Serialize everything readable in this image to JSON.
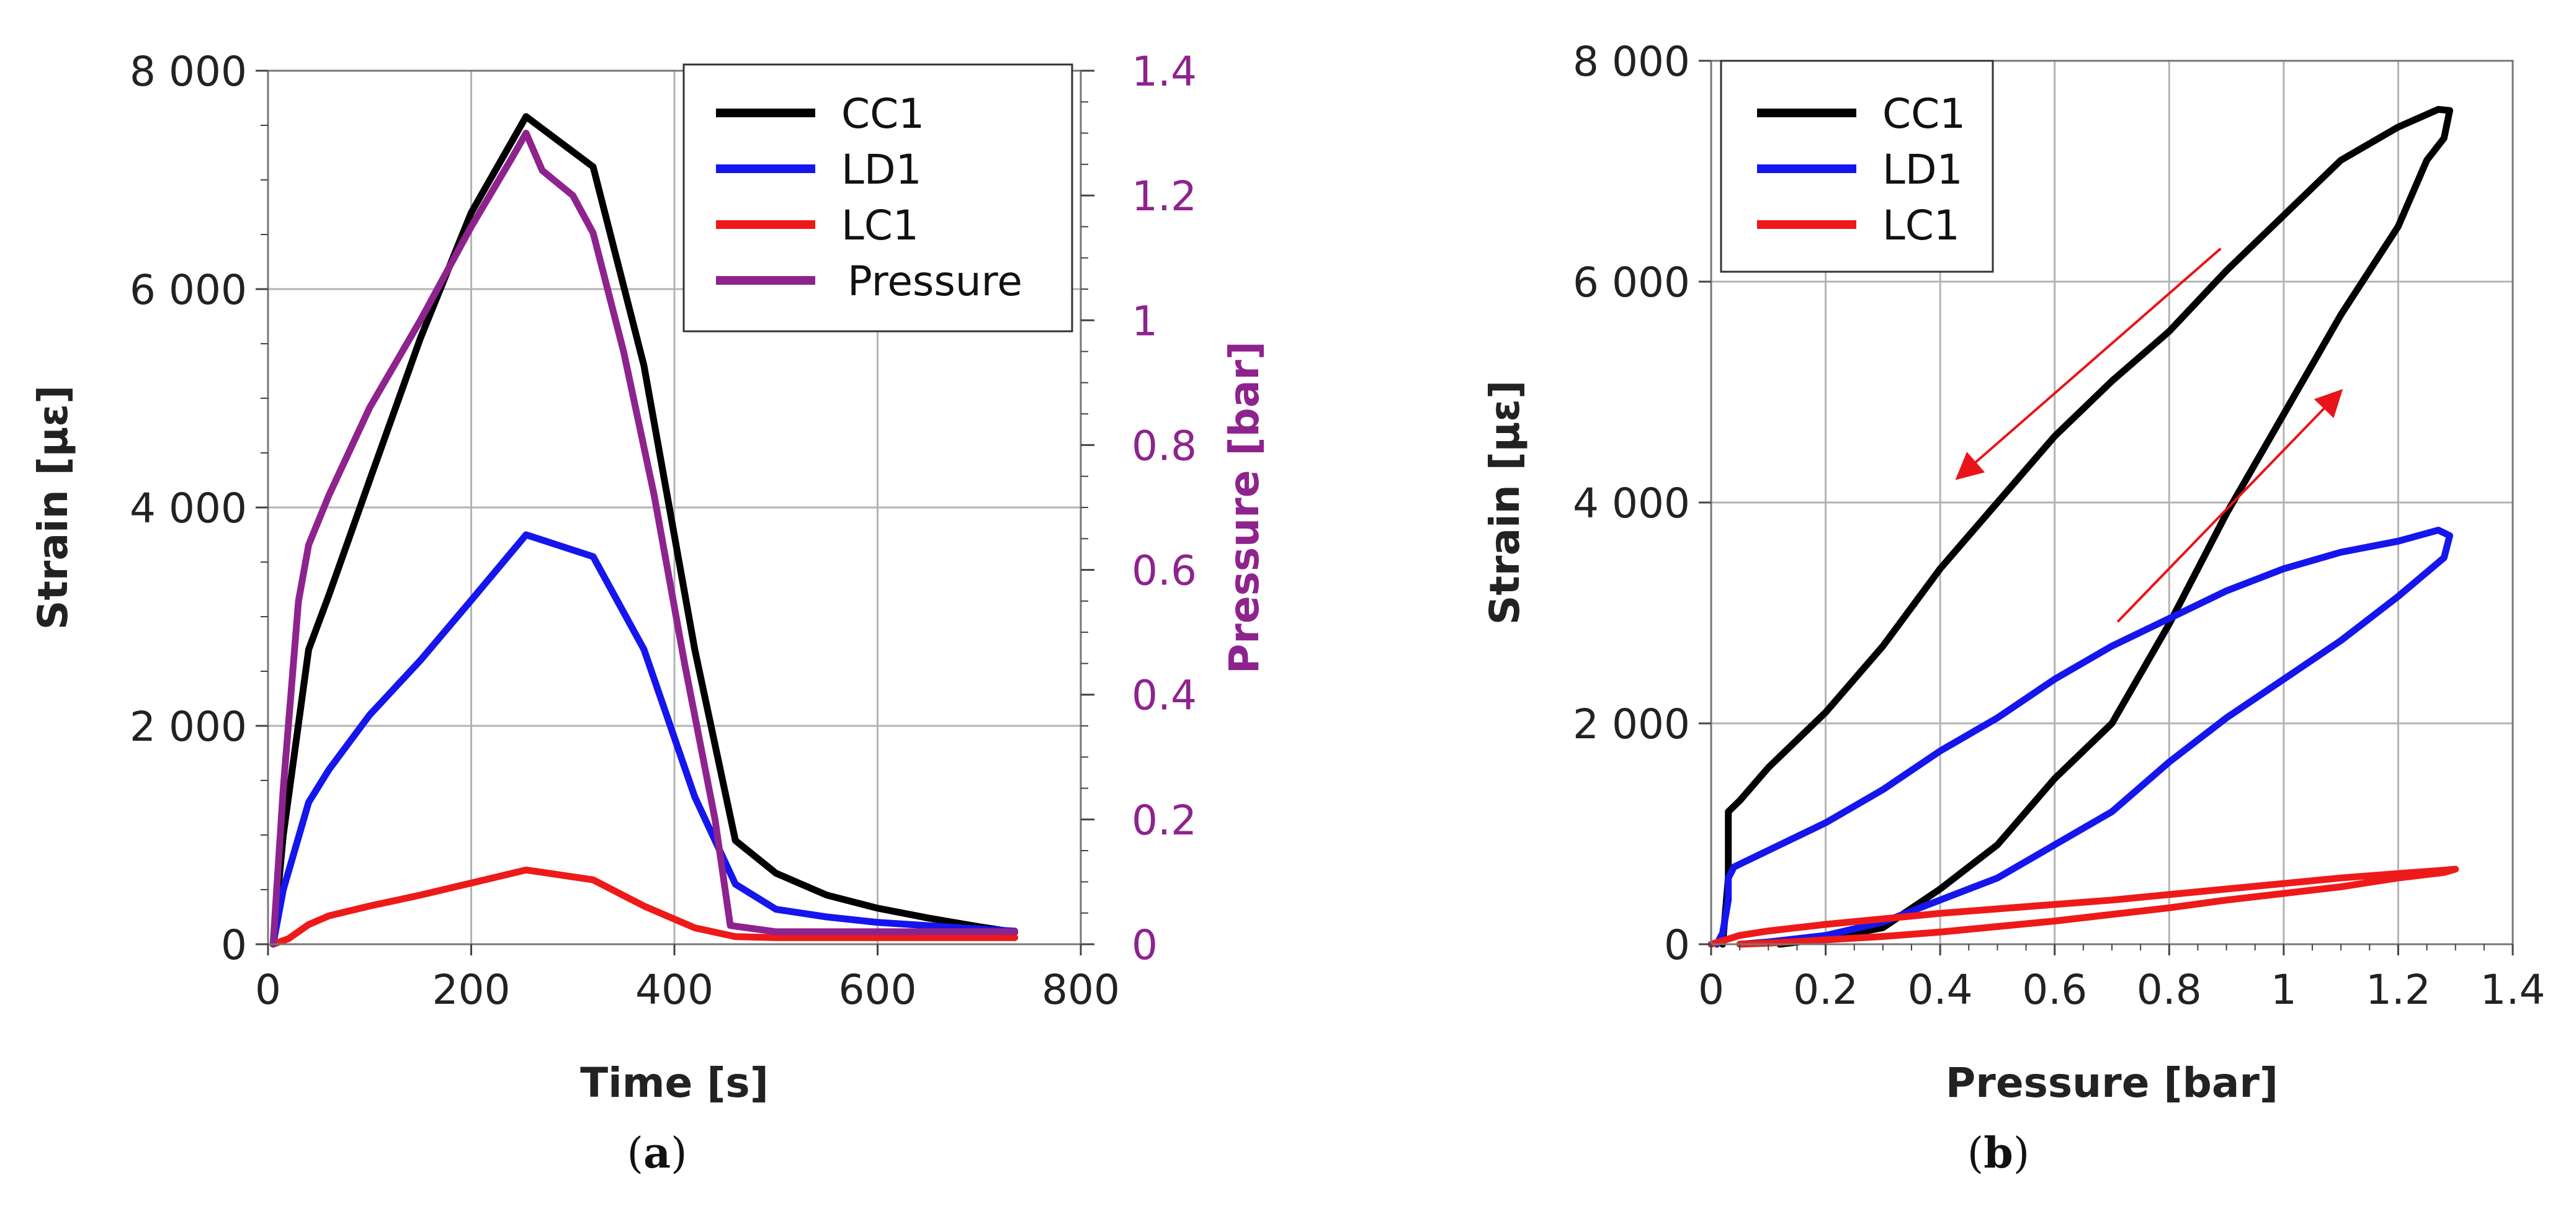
{
  "colors": {
    "CC1": "#000000",
    "LD1": "#1515ee",
    "LC1": "#ee1a1a",
    "Pressure": "#8e238e",
    "arrow": "#e8141a",
    "grid": "#b3b3b3"
  },
  "chart_data": [
    {
      "id": "a",
      "type": "line",
      "caption_letter": "a",
      "xlabel": "Time [s]",
      "ylabel": "Strain [με]",
      "y2label": "Pressure [bar]",
      "xlim": [
        0,
        800
      ],
      "ylim": [
        0,
        8000
      ],
      "y2lim": [
        0,
        1.4
      ],
      "xticks": [
        0,
        200,
        400,
        600,
        800
      ],
      "xtick_labels": [
        "0",
        "200",
        "400",
        "600",
        "800"
      ],
      "yticks": [
        0,
        2000,
        4000,
        6000,
        8000
      ],
      "ytick_labels": [
        "0",
        "2 000",
        "4 000",
        "6 000",
        "8 000"
      ],
      "y2ticks": [
        0,
        0.2,
        0.4,
        0.6,
        0.8,
        1,
        1.2,
        1.4
      ],
      "y2tick_labels": [
        "0",
        "0.2",
        "0.4",
        "0.6",
        "0.8",
        "1",
        "1.2",
        "1.4"
      ],
      "grid": true,
      "legend_position": "top-right",
      "legend": [
        "CC1",
        "LD1",
        "LC1",
        "Pressure"
      ],
      "series": [
        {
          "name": "CC1",
          "axis": "left",
          "x": [
            5,
            15,
            40,
            60,
            100,
            150,
            200,
            254,
            320,
            370,
            420,
            460,
            500,
            550,
            600,
            650,
            700,
            735
          ],
          "y": [
            0,
            1000,
            2700,
            3200,
            4250,
            5550,
            6700,
            7580,
            7120,
            5300,
            2700,
            950,
            650,
            450,
            330,
            240,
            160,
            110
          ]
        },
        {
          "name": "LD1",
          "axis": "left",
          "x": [
            5,
            15,
            40,
            60,
            100,
            150,
            200,
            254,
            320,
            370,
            420,
            460,
            500,
            550,
            600,
            650,
            700,
            735
          ],
          "y": [
            0,
            500,
            1300,
            1600,
            2100,
            2600,
            3150,
            3750,
            3550,
            2700,
            1350,
            550,
            320,
            250,
            200,
            170,
            140,
            120
          ]
        },
        {
          "name": "LC1",
          "axis": "left",
          "x": [
            5,
            20,
            40,
            60,
            100,
            150,
            200,
            254,
            320,
            370,
            420,
            460,
            500,
            600,
            700,
            735
          ],
          "y": [
            0,
            50,
            180,
            260,
            350,
            450,
            560,
            680,
            590,
            350,
            150,
            70,
            60,
            60,
            60,
            60
          ]
        },
        {
          "name": "Pressure",
          "axis": "right",
          "x": [
            5,
            15,
            30,
            40,
            60,
            100,
            150,
            200,
            240,
            254,
            270,
            300,
            320,
            350,
            380,
            410,
            440,
            455,
            500,
            600,
            700,
            735
          ],
          "y": [
            0,
            0.25,
            0.55,
            0.64,
            0.72,
            0.86,
            1.0,
            1.15,
            1.26,
            1.3,
            1.24,
            1.2,
            1.14,
            0.95,
            0.72,
            0.45,
            0.2,
            0.03,
            0.02,
            0.02,
            0.02,
            0.02
          ]
        }
      ]
    },
    {
      "id": "b",
      "type": "line",
      "caption_letter": "b",
      "xlabel": "Pressure [bar]",
      "ylabel": "Strain [με]",
      "xlim": [
        0,
        1.4
      ],
      "ylim": [
        0,
        8000
      ],
      "xticks": [
        0,
        0.2,
        0.4,
        0.6,
        0.8,
        1,
        1.2,
        1.4
      ],
      "xtick_labels": [
        "0",
        "0.2",
        "0.4",
        "0.6",
        "0.8",
        "1",
        "1.2",
        "1.4"
      ],
      "yticks": [
        0,
        2000,
        4000,
        6000,
        8000
      ],
      "ytick_labels": [
        "0",
        "2 000",
        "4 000",
        "6 000",
        "8 000"
      ],
      "grid": true,
      "legend_position": "top-left",
      "legend": [
        "CC1",
        "LD1",
        "LC1"
      ],
      "series": [
        {
          "name": "CC1",
          "x": [
            0.02,
            0.03,
            0.03,
            0.05,
            0.1,
            0.2,
            0.3,
            0.4,
            0.5,
            0.6,
            0.7,
            0.8,
            0.9,
            1.0,
            1.1,
            1.2,
            1.27,
            1.29,
            1.28,
            1.25,
            1.2,
            1.1,
            1.0,
            0.9,
            0.8,
            0.7,
            0.6,
            0.5,
            0.4,
            0.3,
            0.2,
            0.12
          ],
          "y": [
            0,
            600,
            1200,
            1300,
            1600,
            2100,
            2700,
            3400,
            4000,
            4600,
            5100,
            5550,
            6100,
            6600,
            7100,
            7400,
            7560,
            7550,
            7300,
            7100,
            6500,
            5700,
            4800,
            3900,
            2900,
            2000,
            1500,
            900,
            500,
            150,
            50,
            0
          ]
        },
        {
          "name": "LD1",
          "x": [
            0.01,
            0.02,
            0.03,
            0.03,
            0.04,
            0.1,
            0.2,
            0.3,
            0.4,
            0.5,
            0.6,
            0.7,
            0.8,
            0.9,
            1.0,
            1.1,
            1.2,
            1.27,
            1.29,
            1.28,
            1.2,
            1.1,
            1.0,
            0.9,
            0.8,
            0.7,
            0.6,
            0.5,
            0.4,
            0.3,
            0.2,
            0.1,
            0.05
          ],
          "y": [
            0,
            100,
            400,
            600,
            700,
            850,
            1100,
            1400,
            1750,
            2050,
            2400,
            2700,
            2950,
            3200,
            3400,
            3550,
            3650,
            3750,
            3700,
            3500,
            3150,
            2750,
            2400,
            2050,
            1650,
            1200,
            900,
            600,
            400,
            200,
            80,
            20,
            0
          ]
        },
        {
          "name": "LC1",
          "x": [
            0.0,
            0.05,
            0.1,
            0.2,
            0.3,
            0.4,
            0.5,
            0.6,
            0.7,
            0.8,
            0.9,
            1.0,
            1.1,
            1.2,
            1.28,
            1.3,
            1.28,
            1.2,
            1.1,
            1.0,
            0.9,
            0.8,
            0.7,
            0.6,
            0.5,
            0.4,
            0.3,
            0.2,
            0.1,
            0.05
          ],
          "y": [
            0,
            80,
            120,
            180,
            230,
            280,
            320,
            360,
            400,
            450,
            500,
            550,
            600,
            640,
            670,
            680,
            650,
            600,
            520,
            460,
            400,
            330,
            270,
            210,
            160,
            110,
            70,
            40,
            10,
            0
          ]
        }
      ],
      "annotations": [
        {
          "type": "arrow",
          "direction": "down-left",
          "from": [
            0.89,
            6300
          ],
          "to": [
            0.43,
            4220
          ]
        },
        {
          "type": "arrow",
          "direction": "up-right",
          "from": [
            0.71,
            2920
          ],
          "to": [
            1.1,
            5010
          ]
        }
      ]
    }
  ]
}
